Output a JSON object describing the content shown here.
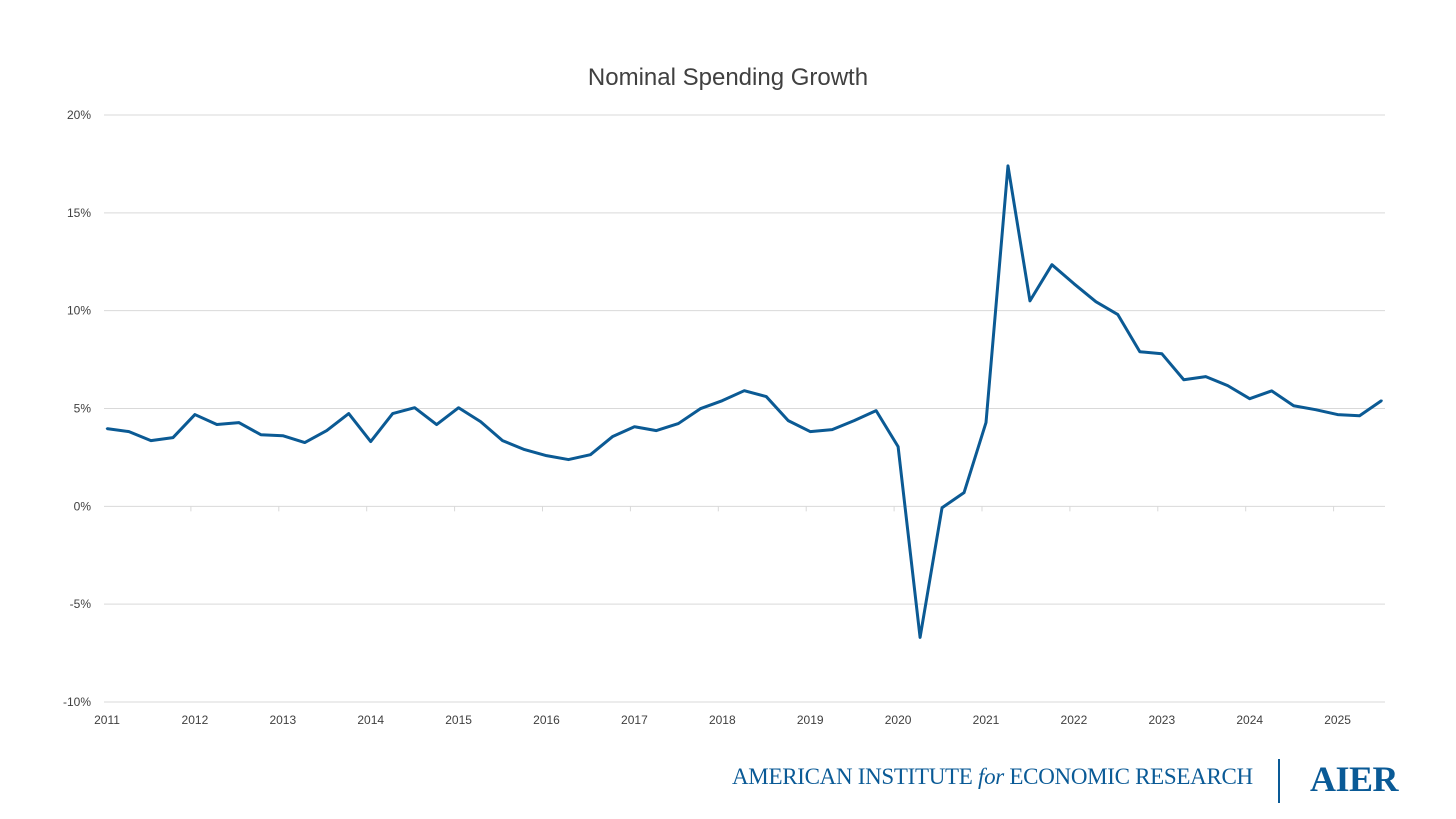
{
  "chart_data": {
    "type": "line",
    "title": "Nominal Spending Growth",
    "xlabel": "",
    "ylabel": "",
    "ylim": [
      -10,
      20
    ],
    "yticks": [
      -10,
      -5,
      0,
      5,
      10,
      15,
      20
    ],
    "ytick_labels": [
      "-10%",
      "-5%",
      "0%",
      "5%",
      "10%",
      "15%",
      "20%"
    ],
    "xtick_labels": [
      "2011",
      "2012",
      "2013",
      "2014",
      "2015",
      "2016",
      "2017",
      "2018",
      "2019",
      "2020",
      "2021",
      "2022",
      "2023",
      "2024",
      "2025"
    ],
    "grid": true,
    "legend": "none",
    "series": [
      {
        "name": "Nominal Spending Growth",
        "color": "#0b5a94",
        "start": [
          2011,
          1
        ],
        "frequency": "quarterly",
        "values": [
          3.97,
          3.82,
          3.36,
          3.51,
          4.69,
          4.18,
          4.28,
          3.66,
          3.61,
          3.26,
          3.87,
          4.74,
          3.31,
          4.74,
          5.04,
          4.18,
          5.04,
          4.33,
          3.36,
          2.9,
          2.59,
          2.39,
          2.64,
          3.56,
          4.07,
          3.87,
          4.23,
          4.99,
          5.4,
          5.91,
          5.61,
          4.38,
          3.82,
          3.92,
          4.38,
          4.89,
          3.05,
          -6.7,
          -0.07,
          0.7,
          4.28,
          17.4,
          10.5,
          12.35,
          11.38,
          10.46,
          9.8,
          7.9,
          7.8,
          6.47,
          6.63,
          6.17,
          5.5,
          5.9,
          5.14,
          4.94,
          4.69,
          4.63,
          5.4
        ]
      }
    ]
  },
  "branding": {
    "org_name_pre": "AMERICAN INSTITUTE ",
    "org_name_for": "for",
    "org_name_post": " ECONOMIC RESEARCH",
    "acronym": "AIER"
  }
}
